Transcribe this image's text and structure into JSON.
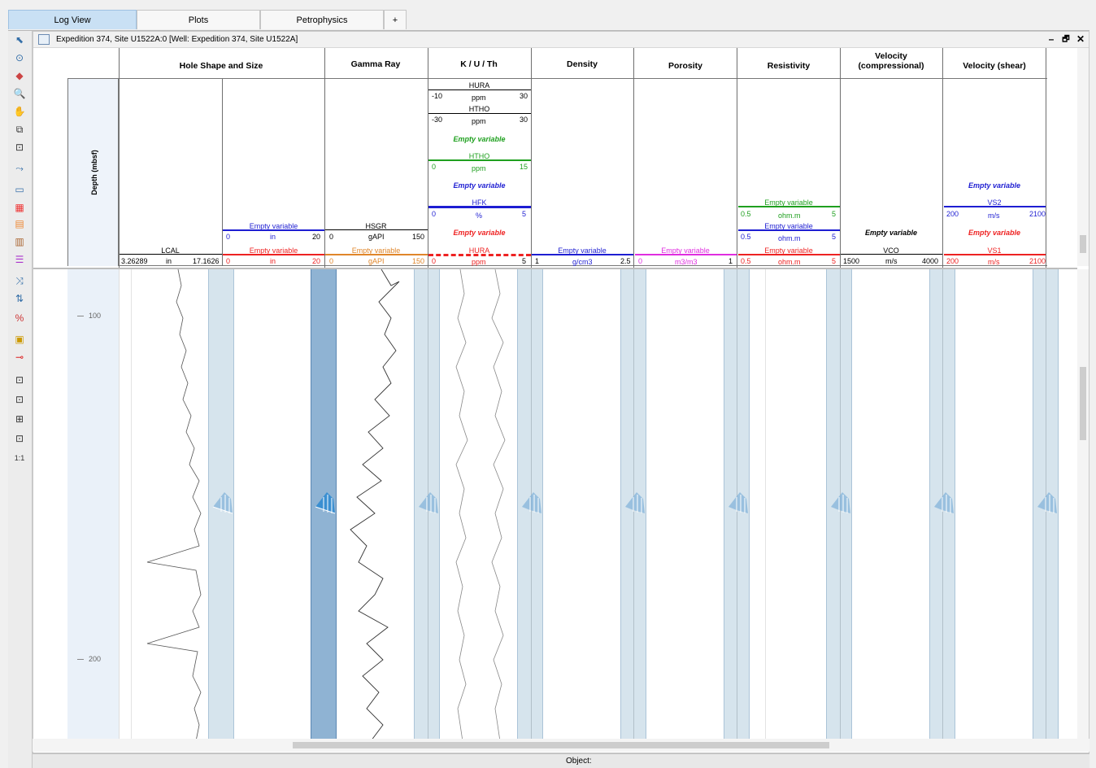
{
  "tabs": [
    {
      "label": "Log View",
      "active": true
    },
    {
      "label": "Plots",
      "active": false
    },
    {
      "label": "Petrophysics",
      "active": false
    },
    {
      "label": "+",
      "active": false
    }
  ],
  "window": {
    "title": "Expedition 374, Site U1522A:0 [Well: Expedition 374, Site U1522A]",
    "controls": [
      "–",
      "🗗",
      "✕"
    ]
  },
  "depth_track": {
    "label": "Depth (mbsf)",
    "ticks": [
      "100",
      "200"
    ]
  },
  "tracks": {
    "hole": {
      "title": "Hole Shape and Size",
      "lcal": {
        "name": "LCAL",
        "min": "3.26289",
        "unit": "in",
        "max": "17.1626"
      },
      "curve_blue": {
        "name": "Empty variable",
        "min": "0",
        "unit": "in",
        "max": "20"
      },
      "curve_red": {
        "name": "Empty variable",
        "min": "0",
        "unit": "in",
        "max": "20"
      }
    },
    "gamma": {
      "title": "Gamma Ray",
      "hsgr": {
        "name": "HSGR",
        "min": "0",
        "unit": "gAPI",
        "max": "150"
      },
      "orange": {
        "name": "Empty variable",
        "min": "0",
        "unit": "gAPI",
        "max": "150"
      }
    },
    "kuth": {
      "title": "K / U / Th",
      "hura1": {
        "name": "HURA",
        "min": "-10",
        "unit": "ppm",
        "max": "30"
      },
      "htho1": {
        "name": "HTHO",
        "min": "-30",
        "unit": "ppm",
        "max": "30"
      },
      "empty_green": "Empty variable",
      "htho2": {
        "name": "HTHO",
        "min": "0",
        "unit": "ppm",
        "max": "15"
      },
      "empty_blue": "Empty variable",
      "hfk": {
        "name": "HFK",
        "min": "0",
        "unit": "%",
        "max": "5"
      },
      "empty_red": "Empty variable",
      "hura2": {
        "name": "HURA",
        "min": "0",
        "unit": "ppm",
        "max": "5"
      }
    },
    "density": {
      "title": "Density",
      "curve": {
        "name": "Empty variable",
        "min": "1",
        "unit": "g/cm3",
        "max": "2.5"
      }
    },
    "porosity": {
      "title": "Porosity",
      "curve": {
        "name": "Empty variable",
        "min": "0",
        "unit": "m3/m3",
        "max": "1"
      }
    },
    "resistivity": {
      "title": "Resistivity",
      "green": {
        "name": "Empty variable",
        "min": "0.5",
        "unit": "ohm.m",
        "max": "5"
      },
      "blue": {
        "name": "Empty variable",
        "min": "0.5",
        "unit": "ohm.m",
        "max": "5"
      },
      "red": {
        "name": "Empty variable",
        "min": "0.5",
        "unit": "ohm.m",
        "max": "5"
      }
    },
    "vp": {
      "title_l1": "Velocity",
      "title_l2": "(compressional)",
      "empty": "Empty variable",
      "vco": {
        "name": "VCO",
        "min": "1500",
        "unit": "m/s",
        "max": "4000"
      }
    },
    "vs": {
      "title": "Velocity (shear)",
      "empty_blue": "Empty variable",
      "vs2": {
        "name": "VS2",
        "min": "200",
        "unit": "m/s",
        "max": "2100"
      },
      "empty_red": "Empty variable",
      "vs1": {
        "name": "VS1",
        "min": "200",
        "unit": "m/s",
        "max": "2100"
      }
    }
  },
  "status": {
    "object_label": "Object:"
  },
  "colors": {
    "accent": "#c9e0f4",
    "band": "#c9dbe8",
    "selected_band": "#8fb3d3",
    "curve_blue": "#1e1ed2",
    "curve_red": "#e22222",
    "curve_green": "#1fa01f"
  }
}
